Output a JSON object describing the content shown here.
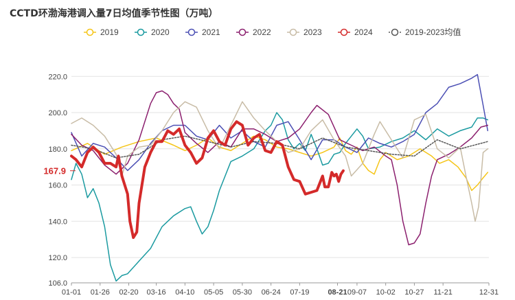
{
  "chart_data": {
    "type": "line",
    "title": "CCTD环渤海港调入量7日均值季节性图（万吨）",
    "xlabel": "",
    "ylabel": "",
    "ylim": [
      106,
      222
    ],
    "yticks": [
      106,
      120,
      140,
      160,
      180,
      200,
      220
    ],
    "ytick_labels": [
      "106.0",
      "120.0",
      "140.0",
      "160.0",
      "180.0",
      "200.0",
      "220.0"
    ],
    "x_ticks": [
      "01-01",
      "01-26",
      "02-20",
      "03-16",
      "04-10",
      "05-05",
      "05-30",
      "06-24",
      "07-19",
      "08-21",
      "09-07",
      "10-02",
      "10-27",
      "11-21",
      "12-31"
    ],
    "x_tick_days": [
      1,
      26,
      51,
      75,
      100,
      125,
      150,
      175,
      200,
      233,
      250,
      275,
      300,
      325,
      365
    ],
    "highlight_tick": "08-21",
    "highlight_tick_color": "#e03030",
    "current_value_label": "167.9",
    "current_value": 167.9,
    "legend_position": "top",
    "grid": true,
    "series": [
      {
        "name": "2019",
        "color": "#f5c518",
        "width": 1.5,
        "dash": "",
        "points": [
          [
            1,
            179
          ],
          [
            15,
            183
          ],
          [
            30,
            177
          ],
          [
            45,
            181
          ],
          [
            60,
            184
          ],
          [
            75,
            186
          ],
          [
            90,
            182
          ],
          [
            100,
            179
          ],
          [
            110,
            182
          ],
          [
            120,
            186
          ],
          [
            130,
            181
          ],
          [
            140,
            179
          ],
          [
            150,
            183
          ],
          [
            160,
            187
          ],
          [
            170,
            185
          ],
          [
            180,
            181
          ],
          [
            190,
            180
          ],
          [
            200,
            178
          ],
          [
            210,
            176
          ],
          [
            220,
            178
          ],
          [
            230,
            181
          ],
          [
            235,
            186
          ],
          [
            240,
            179
          ],
          [
            245,
            177
          ],
          [
            250,
            181
          ],
          [
            255,
            172
          ],
          [
            260,
            168
          ],
          [
            265,
            166
          ],
          [
            270,
            174
          ],
          [
            275,
            178
          ],
          [
            285,
            174
          ],
          [
            295,
            176
          ],
          [
            305,
            180
          ],
          [
            315,
            176
          ],
          [
            322,
            172
          ],
          [
            330,
            174
          ],
          [
            338,
            170
          ],
          [
            345,
            164
          ],
          [
            350,
            157
          ],
          [
            355,
            160
          ],
          [
            360,
            164
          ],
          [
            364,
            167
          ]
        ]
      },
      {
        "name": "2020",
        "color": "#1a9aa0",
        "width": 1.5,
        "dash": "",
        "points": [
          [
            1,
            163
          ],
          [
            5,
            172
          ],
          [
            10,
            166
          ],
          [
            15,
            153
          ],
          [
            20,
            158
          ],
          [
            25,
            150
          ],
          [
            30,
            137
          ],
          [
            35,
            116
          ],
          [
            40,
            107
          ],
          [
            45,
            110
          ],
          [
            50,
            111
          ],
          [
            60,
            118
          ],
          [
            70,
            125
          ],
          [
            80,
            137
          ],
          [
            90,
            143
          ],
          [
            100,
            147
          ],
          [
            105,
            148
          ],
          [
            110,
            140
          ],
          [
            115,
            133
          ],
          [
            120,
            137
          ],
          [
            125,
            146
          ],
          [
            130,
            157
          ],
          [
            140,
            173
          ],
          [
            150,
            176
          ],
          [
            160,
            180
          ],
          [
            170,
            190
          ],
          [
            175,
            193
          ],
          [
            180,
            200
          ],
          [
            185,
            196
          ],
          [
            190,
            185
          ],
          [
            195,
            180
          ],
          [
            200,
            183
          ],
          [
            205,
            179
          ],
          [
            210,
            188
          ],
          [
            215,
            180
          ],
          [
            220,
            171
          ],
          [
            225,
            172
          ],
          [
            230,
            177
          ],
          [
            235,
            178
          ],
          [
            240,
            183
          ],
          [
            245,
            187
          ],
          [
            250,
            191
          ],
          [
            255,
            187
          ],
          [
            260,
            180
          ],
          [
            270,
            181
          ],
          [
            280,
            184
          ],
          [
            290,
            186
          ],
          [
            300,
            190
          ],
          [
            310,
            185
          ],
          [
            320,
            191
          ],
          [
            330,
            187
          ],
          [
            340,
            190
          ],
          [
            350,
            192
          ],
          [
            355,
            197
          ],
          [
            360,
            197
          ],
          [
            364,
            196
          ]
        ]
      },
      {
        "name": "2021",
        "color": "#4b4fb4",
        "width": 1.5,
        "dash": "",
        "points": [
          [
            1,
            189
          ],
          [
            10,
            176
          ],
          [
            20,
            183
          ],
          [
            30,
            181
          ],
          [
            40,
            175
          ],
          [
            50,
            168
          ],
          [
            60,
            174
          ],
          [
            70,
            183
          ],
          [
            80,
            190
          ],
          [
            90,
            193
          ],
          [
            100,
            193
          ],
          [
            110,
            187
          ],
          [
            120,
            185
          ],
          [
            130,
            193
          ],
          [
            140,
            186
          ],
          [
            150,
            190
          ],
          [
            160,
            184
          ],
          [
            170,
            181
          ],
          [
            180,
            193
          ],
          [
            190,
            195
          ],
          [
            200,
            185
          ],
          [
            210,
            174
          ],
          [
            220,
            185
          ],
          [
            230,
            185
          ],
          [
            240,
            181
          ],
          [
            250,
            178
          ],
          [
            260,
            186
          ],
          [
            270,
            183
          ],
          [
            280,
            181
          ],
          [
            290,
            184
          ],
          [
            300,
            188
          ],
          [
            310,
            200
          ],
          [
            320,
            205
          ],
          [
            330,
            214
          ],
          [
            340,
            216
          ],
          [
            350,
            219
          ],
          [
            355,
            221
          ],
          [
            360,
            204
          ],
          [
            364,
            190
          ]
        ]
      },
      {
        "name": "2022",
        "color": "#8b1f6e",
        "width": 1.5,
        "dash": "",
        "points": [
          [
            1,
            188
          ],
          [
            10,
            182
          ],
          [
            20,
            179
          ],
          [
            30,
            171
          ],
          [
            40,
            166
          ],
          [
            50,
            172
          ],
          [
            60,
            185
          ],
          [
            70,
            205
          ],
          [
            75,
            211
          ],
          [
            80,
            212
          ],
          [
            85,
            210
          ],
          [
            90,
            205
          ],
          [
            95,
            202
          ],
          [
            100,
            189
          ],
          [
            110,
            183
          ],
          [
            120,
            178
          ],
          [
            130,
            184
          ],
          [
            140,
            181
          ],
          [
            150,
            191
          ],
          [
            160,
            191
          ],
          [
            170,
            188
          ],
          [
            180,
            184
          ],
          [
            190,
            186
          ],
          [
            200,
            191
          ],
          [
            210,
            200
          ],
          [
            215,
            204
          ],
          [
            225,
            199
          ],
          [
            235,
            185
          ],
          [
            245,
            182
          ],
          [
            255,
            179
          ],
          [
            265,
            181
          ],
          [
            275,
            176
          ],
          [
            280,
            174
          ],
          [
            285,
            160
          ],
          [
            290,
            140
          ],
          [
            295,
            127
          ],
          [
            300,
            128
          ],
          [
            305,
            133
          ],
          [
            310,
            150
          ],
          [
            315,
            165
          ],
          [
            320,
            174
          ],
          [
            330,
            177
          ],
          [
            340,
            181
          ],
          [
            350,
            186
          ],
          [
            358,
            192
          ],
          [
            364,
            193
          ]
        ]
      },
      {
        "name": "2023",
        "color": "#c8bca6",
        "width": 1.5,
        "dash": "",
        "points": [
          [
            1,
            194
          ],
          [
            10,
            197
          ],
          [
            20,
            193
          ],
          [
            30,
            187
          ],
          [
            40,
            177
          ],
          [
            45,
            165
          ],
          [
            50,
            176
          ],
          [
            60,
            181
          ],
          [
            70,
            182
          ],
          [
            80,
            190
          ],
          [
            90,
            200
          ],
          [
            100,
            206
          ],
          [
            110,
            203
          ],
          [
            120,
            190
          ],
          [
            130,
            180
          ],
          [
            140,
            193
          ],
          [
            150,
            206
          ],
          [
            160,
            197
          ],
          [
            170,
            190
          ],
          [
            180,
            184
          ],
          [
            190,
            178
          ],
          [
            200,
            180
          ],
          [
            210,
            190
          ],
          [
            220,
            196
          ],
          [
            230,
            185
          ],
          [
            240,
            176
          ],
          [
            245,
            165
          ],
          [
            255,
            172
          ],
          [
            265,
            188
          ],
          [
            270,
            195
          ],
          [
            280,
            185
          ],
          [
            290,
            175
          ],
          [
            300,
            196
          ],
          [
            310,
            199
          ],
          [
            320,
            180
          ],
          [
            330,
            175
          ],
          [
            340,
            181
          ],
          [
            345,
            165
          ],
          [
            350,
            150
          ],
          [
            353,
            140
          ],
          [
            356,
            148
          ],
          [
            360,
            178
          ],
          [
            364,
            180
          ]
        ]
      },
      {
        "name": "2024",
        "color": "#d42a2a",
        "width": 4,
        "dash": "",
        "points": [
          [
            1,
            176
          ],
          [
            5,
            174
          ],
          [
            10,
            170
          ],
          [
            15,
            178
          ],
          [
            20,
            181
          ],
          [
            25,
            178
          ],
          [
            30,
            172
          ],
          [
            35,
            172
          ],
          [
            40,
            170
          ],
          [
            42,
            176
          ],
          [
            45,
            165
          ],
          [
            50,
            155
          ],
          [
            52,
            140
          ],
          [
            55,
            131
          ],
          [
            58,
            134
          ],
          [
            60,
            150
          ],
          [
            65,
            170
          ],
          [
            70,
            178
          ],
          [
            75,
            184
          ],
          [
            80,
            184
          ],
          [
            85,
            190
          ],
          [
            90,
            188
          ],
          [
            95,
            191
          ],
          [
            100,
            182
          ],
          [
            105,
            178
          ],
          [
            110,
            172
          ],
          [
            115,
            175
          ],
          [
            120,
            186
          ],
          [
            125,
            190
          ],
          [
            130,
            184
          ],
          [
            135,
            182
          ],
          [
            140,
            191
          ],
          [
            145,
            195
          ],
          [
            150,
            193
          ],
          [
            155,
            182
          ],
          [
            160,
            186
          ],
          [
            165,
            188
          ],
          [
            170,
            179
          ],
          [
            175,
            178
          ],
          [
            180,
            184
          ],
          [
            185,
            182
          ],
          [
            190,
            170
          ],
          [
            195,
            163
          ],
          [
            200,
            162
          ],
          [
            205,
            155
          ],
          [
            210,
            156
          ],
          [
            215,
            157
          ],
          [
            220,
            165
          ],
          [
            222,
            159
          ],
          [
            225,
            159
          ],
          [
            228,
            167
          ],
          [
            230,
            165
          ],
          [
            232,
            166
          ],
          [
            234,
            162
          ],
          [
            236,
            166
          ],
          [
            238,
            167.9
          ]
        ]
      },
      {
        "name": "2019-2023均值",
        "color": "#555555",
        "width": 1.5,
        "dash": "2,2",
        "points": [
          [
            1,
            182
          ],
          [
            20,
            180
          ],
          [
            40,
            175
          ],
          [
            60,
            177
          ],
          [
            80,
            185
          ],
          [
            100,
            187
          ],
          [
            120,
            184
          ],
          [
            140,
            181
          ],
          [
            160,
            184
          ],
          [
            180,
            183
          ],
          [
            200,
            180
          ],
          [
            220,
            186
          ],
          [
            240,
            181
          ],
          [
            260,
            179
          ],
          [
            280,
            177
          ],
          [
            300,
            176
          ],
          [
            320,
            185
          ],
          [
            340,
            180
          ],
          [
            364,
            184
          ]
        ]
      }
    ]
  }
}
